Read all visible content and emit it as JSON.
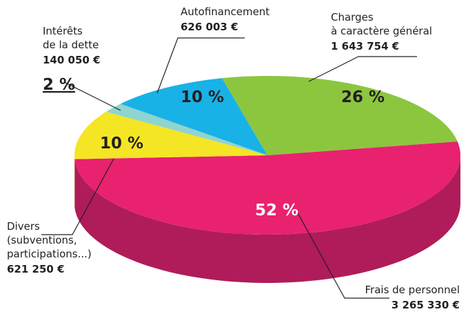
{
  "chart_data": {
    "type": "pie",
    "categories": [
      "Frais de personnel",
      "Divers\n(subventions,\nparticipations...)",
      "Intérêts\nde la dette",
      "Autofinancement",
      "Charges\nà caractère général"
    ],
    "amounts": [
      "3 265 330 €",
      "621 250 €",
      "140 050 €",
      "626 003 €",
      "1 643 754 €"
    ],
    "values": [
      52,
      10,
      2,
      10,
      26
    ],
    "value_labels": [
      "52 %",
      "10 %",
      "2 %",
      "10 %",
      "26 %"
    ],
    "colors": [
      "#e8226e",
      "#f4e525",
      "#8fd4cf",
      "#19b2e6",
      "#8cc63f"
    ],
    "side_colors": [
      "#b01c59",
      "#c0b31c",
      "#6aa9a5",
      "#1489b3",
      "#6b9a2c"
    ]
  }
}
